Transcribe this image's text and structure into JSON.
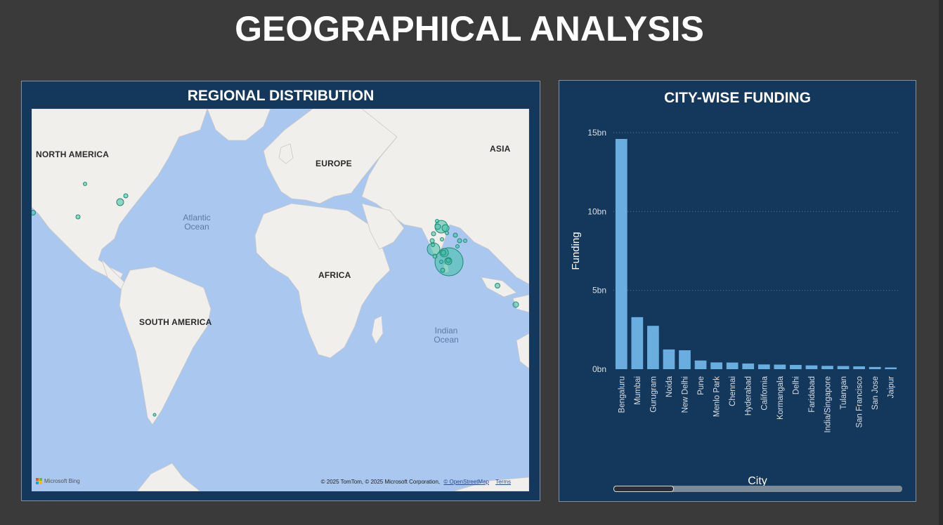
{
  "page": {
    "title": "GEOGRAPHICAL ANALYSIS"
  },
  "map": {
    "title": "REGIONAL DISTRIBUTION",
    "continents": [
      "NORTH AMERICA",
      "EUROPE",
      "ASIA",
      "AFRICA",
      "SOUTH AMERICA"
    ],
    "oceans": [
      "Atlantic\nOcean",
      "Indian\nOcean"
    ],
    "provider": "Microsoft Bing",
    "attribution": "© 2025 TomTom, © 2025 Microsoft Corporation,",
    "links": [
      "© OpenStreetMap",
      "Terms"
    ],
    "bubble_color": "#3cc0a6"
  },
  "chart": {
    "title": "CITY-WISE FUNDING",
    "bar_color": "#6aaee0",
    "scrollbar_position": 0
  },
  "chart_data": {
    "type": "bar",
    "title": "CITY-WISE FUNDING",
    "xlabel": "City",
    "ylabel": "Funding",
    "ylim": [
      0,
      15000000000
    ],
    "yticks": [
      "0bn",
      "5bn",
      "10bn",
      "15bn"
    ],
    "ytick_values": [
      0,
      5000000000,
      10000000000,
      15000000000
    ],
    "grid": true,
    "categories": [
      "Bengaluru",
      "Mumbai",
      "Gurugram",
      "Noida",
      "New Delhi",
      "Pune",
      "Menlo Park",
      "Chennai",
      "Hyderabad",
      "California",
      "Kormangala",
      "Delhi",
      "Faridabad",
      "India/Singapore",
      "Tulangan",
      "San Francisco",
      "San Jose",
      "Jaipur"
    ],
    "values": [
      14600000000,
      3300000000,
      2750000000,
      1250000000,
      1200000000,
      550000000,
      430000000,
      420000000,
      360000000,
      300000000,
      290000000,
      270000000,
      240000000,
      210000000,
      200000000,
      180000000,
      140000000,
      110000000
    ]
  }
}
